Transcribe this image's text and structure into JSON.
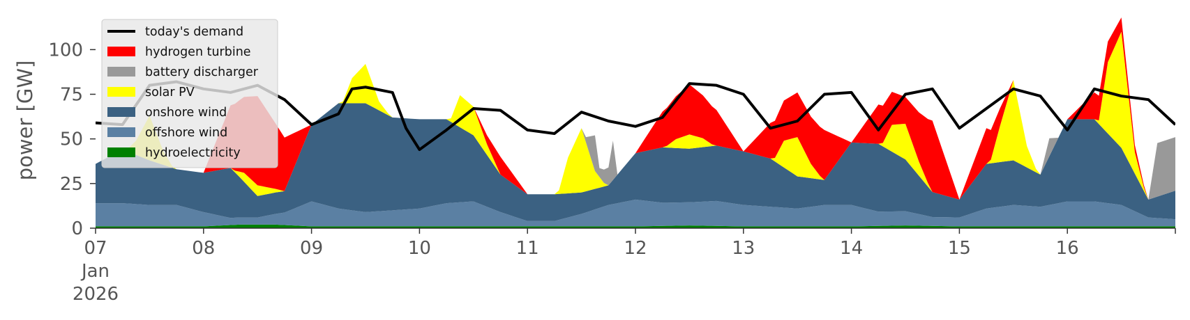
{
  "chart_data": {
    "type": "area",
    "title": "",
    "xlabel": "",
    "ylabel": "power [GW]",
    "ylim": [
      0,
      120
    ],
    "xlim": [
      0,
      240
    ],
    "x_unit": "hours since 07 Jan 2026 00:00",
    "x_ticks": [
      {
        "value": 0,
        "label": "07",
        "sublabel": "Jan",
        "sublabel2": "2026"
      },
      {
        "value": 24,
        "label": "08"
      },
      {
        "value": 48,
        "label": "09"
      },
      {
        "value": 72,
        "label": "10"
      },
      {
        "value": 96,
        "label": "11"
      },
      {
        "value": 120,
        "label": "12"
      },
      {
        "value": 144,
        "label": "13"
      },
      {
        "value": 168,
        "label": "14"
      },
      {
        "value": 192,
        "label": "15"
      },
      {
        "value": 216,
        "label": "16"
      },
      {
        "value": 240,
        "label": ""
      }
    ],
    "y_ticks": [
      0,
      25,
      50,
      75,
      100
    ],
    "grid": false,
    "legend_position": "top-left",
    "legend": [
      {
        "name": "today's demand",
        "color": "#000000",
        "kind": "line"
      },
      {
        "name": "hydrogen turbine",
        "color": "#ff0000",
        "kind": "patch"
      },
      {
        "name": "battery discharger",
        "color": "#999999",
        "kind": "patch"
      },
      {
        "name": "solar PV",
        "color": "#ffff00",
        "kind": "patch"
      },
      {
        "name": "onshore wind",
        "color": "#3b6182",
        "kind": "patch"
      },
      {
        "name": "offshore wind",
        "color": "#5b80a3",
        "kind": "patch"
      },
      {
        "name": "hydroelectricity",
        "color": "#008000",
        "kind": "patch"
      }
    ],
    "stack_order": [
      "hydroelectricity",
      "offshore wind",
      "onshore wind",
      "solar PV",
      "battery discharger",
      "hydrogen turbine"
    ],
    "series": [
      {
        "name": "hydroelectricity",
        "x": [
          0,
          12,
          24,
          32,
          40,
          48,
          72,
          96,
          120,
          132,
          144,
          168,
          180,
          192,
          216,
          240
        ],
        "values": [
          1,
          1,
          1,
          2,
          2,
          1,
          1,
          1,
          1,
          1.5,
          1,
          1,
          1.5,
          1,
          1,
          1
        ]
      },
      {
        "name": "offshore wind",
        "x": [
          0,
          6,
          12,
          18,
          24,
          30,
          36,
          42,
          48,
          54,
          60,
          66,
          72,
          78,
          84,
          90,
          96,
          102,
          108,
          114,
          120,
          126,
          132,
          138,
          144,
          150,
          156,
          162,
          168,
          174,
          180,
          186,
          192,
          198,
          204,
          210,
          216,
          222,
          228,
          234,
          240
        ],
        "values": [
          13,
          13,
          12,
          12,
          8,
          4,
          4,
          7,
          14,
          10,
          8,
          9,
          10,
          13,
          14,
          8,
          3,
          3,
          7,
          12,
          15,
          13,
          13,
          14,
          12,
          11,
          10,
          12,
          12,
          8,
          8,
          5,
          5,
          10,
          12,
          11,
          14,
          14,
          12,
          5,
          4
        ]
      },
      {
        "name": "onshore wind",
        "x": [
          0,
          6,
          12,
          18,
          24,
          30,
          36,
          42,
          48,
          54,
          60,
          66,
          72,
          78,
          84,
          90,
          96,
          102,
          108,
          114,
          120,
          126,
          132,
          138,
          144,
          150,
          156,
          162,
          168,
          174,
          180,
          186,
          192,
          198,
          204,
          210,
          216,
          222,
          228,
          234,
          240
        ],
        "values": [
          22,
          30,
          25,
          20,
          22,
          28,
          12,
          12,
          43,
          59,
          61,
          52,
          50,
          47,
          37,
          21,
          15,
          15,
          12,
          11,
          26,
          31,
          30,
          31,
          30,
          27,
          18,
          14,
          35,
          38,
          29,
          14,
          10,
          25,
          25,
          18,
          46,
          46,
          32,
          10,
          16
        ]
      },
      {
        "name": "solar PV",
        "x": [
          0,
          6,
          7,
          9,
          12,
          15,
          17,
          18,
          24,
          30,
          31,
          33,
          36,
          39,
          41,
          42,
          48,
          54,
          55,
          57,
          60,
          63,
          65,
          66,
          72,
          78,
          79,
          81,
          84,
          87,
          89,
          90,
          96,
          102,
          103,
          105,
          108,
          111,
          113,
          114,
          120,
          126,
          127,
          129,
          132,
          135,
          137,
          138,
          144,
          150,
          151,
          153,
          156,
          159,
          161,
          162,
          168,
          174,
          175,
          177,
          180,
          183,
          185,
          186,
          192,
          198,
          199,
          201,
          204,
          207,
          209,
          210,
          216,
          222,
          223,
          225,
          228,
          231,
          233,
          234,
          240
        ],
        "values": [
          0,
          0,
          1,
          8,
          25,
          8,
          1,
          0,
          0,
          0,
          1,
          5,
          6,
          3,
          1,
          0,
          0,
          0,
          1,
          14,
          22,
          5,
          1,
          0,
          0,
          0,
          2,
          18,
          16,
          6,
          2,
          0,
          0,
          0,
          2,
          20,
          36,
          10,
          2,
          0,
          0,
          0,
          1,
          5,
          8,
          5,
          1,
          0,
          0,
          0,
          2,
          15,
          22,
          8,
          2,
          0,
          0,
          0,
          2,
          15,
          20,
          8,
          2,
          0,
          0,
          0,
          2,
          20,
          45,
          12,
          2,
          0,
          0,
          0,
          2,
          40,
          65,
          12,
          2,
          0,
          0
        ]
      },
      {
        "name": "battery discharger",
        "x": [
          0,
          96,
          105,
          108,
          109,
          111,
          112,
          114,
          115,
          116,
          120,
          132,
          168,
          210,
          212,
          214,
          216,
          234,
          236,
          238,
          240
        ],
        "values": [
          0,
          0,
          0,
          0,
          3,
          20,
          5,
          10,
          22,
          0,
          0,
          0,
          0,
          0,
          10,
          0,
          0,
          0,
          30,
          30,
          30
        ]
      },
      {
        "name": "hydrogen turbine",
        "x": [
          0,
          24,
          30,
          36,
          42,
          48,
          72,
          84,
          90,
          96,
          102,
          108,
          114,
          120,
          126,
          132,
          138,
          144,
          150,
          156,
          162,
          168,
          174,
          180,
          186,
          192,
          198,
          204,
          210,
          216,
          222,
          228,
          234,
          240
        ],
        "values": [
          0,
          0,
          35,
          50,
          30,
          0,
          0,
          0,
          10,
          0,
          0,
          0,
          0,
          0,
          20,
          28,
          20,
          0,
          20,
          25,
          28,
          0,
          22,
          15,
          40,
          0,
          20,
          0,
          0,
          0,
          15,
          8,
          0,
          0
        ]
      },
      {
        "name": "today's demand",
        "x": [
          0,
          6,
          12,
          18,
          24,
          30,
          36,
          42,
          48,
          54,
          57,
          60,
          66,
          69,
          72,
          78,
          84,
          90,
          96,
          102,
          108,
          114,
          120,
          126,
          132,
          138,
          144,
          150,
          156,
          162,
          168,
          174,
          180,
          186,
          192,
          198,
          204,
          210,
          216,
          222,
          228,
          234,
          240
        ],
        "values": [
          59,
          58,
          80,
          82,
          78,
          76,
          80,
          72,
          58,
          64,
          78,
          79,
          76,
          56,
          44,
          55,
          67,
          66,
          55,
          53,
          65,
          60,
          57,
          62,
          81,
          80,
          75,
          56,
          60,
          75,
          76,
          55,
          75,
          78,
          56,
          67,
          78,
          74,
          55,
          78,
          74,
          72,
          58
        ]
      }
    ]
  }
}
